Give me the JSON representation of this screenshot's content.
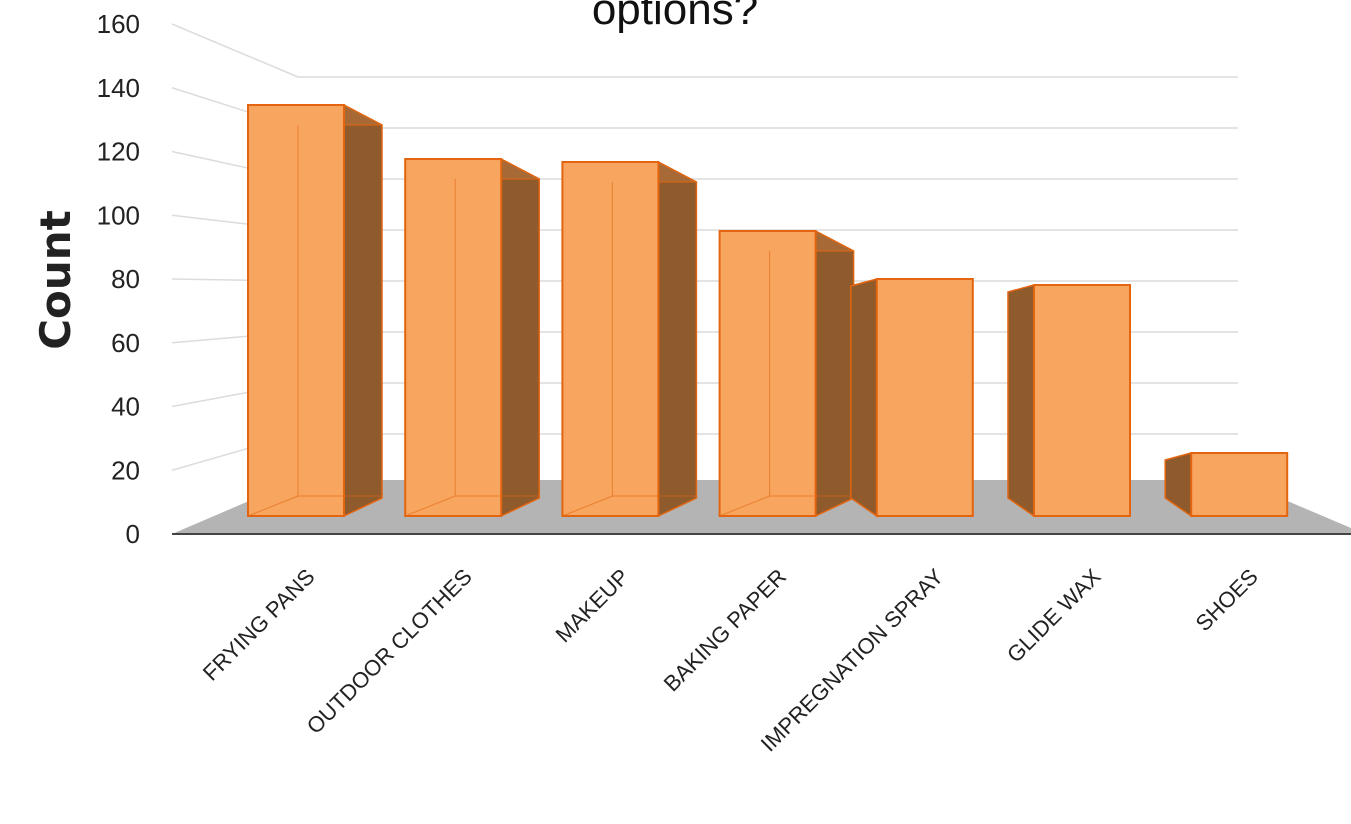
{
  "chart_data": {
    "type": "bar",
    "title": "options?",
    "xlabel": "",
    "ylabel": "Count",
    "categories": [
      "FRYING PANS",
      "OUTDOOR CLOTHES",
      "MAKEUP",
      "BAKING PAPER",
      "IMPREGNATION SPRAY",
      "GLIDE WAX",
      "SHOES"
    ],
    "values": [
      137,
      119,
      118,
      95,
      79,
      77,
      21
    ],
    "ylim": [
      0,
      160
    ],
    "yticks": [
      0,
      20,
      40,
      60,
      80,
      100,
      120,
      140,
      160
    ],
    "grid": true,
    "legend": "none",
    "style": "3d"
  },
  "colors": {
    "bar_front": "#f7a55f",
    "bar_side": "#8f5a2c",
    "bar_top": "#c07a40",
    "bar_edge": "#e3650f",
    "floor": "#b4b4b4",
    "gridline": "#dcdcdc"
  }
}
